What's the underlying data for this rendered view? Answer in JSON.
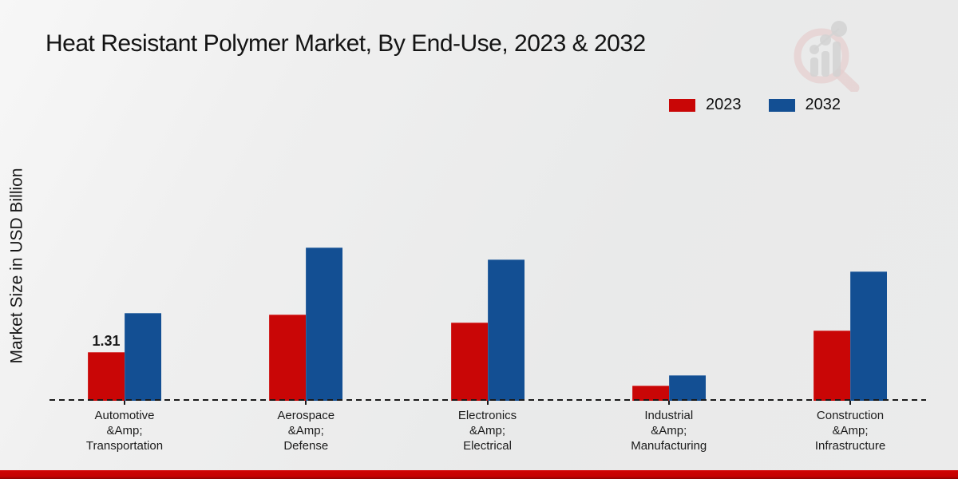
{
  "page": {
    "bottom_accent_color": "#c40202",
    "background_color": "#ebebeb"
  },
  "icons": {
    "watermark": "market-research-future-logo (magnifier with bar chart)"
  },
  "chart_data": {
    "type": "bar",
    "title": "Heat Resistant Polymer Market, By End-Use, 2023 & 2032",
    "ylabel": "Market Size in USD Billion",
    "xlabel": "",
    "categories": [
      "Automotive\n&Amp;\nTransportation",
      "Aerospace\n&Amp;\nDefense",
      "Electronics\n&Amp;\nElectrical",
      "Industrial\n&Amp;\nManufacturing",
      "Construction\n&Amp;\nInfrastructure"
    ],
    "series": [
      {
        "name": "2023",
        "color": "#c90606",
        "values": [
          1.31,
          2.32,
          2.1,
          0.41,
          1.89
        ]
      },
      {
        "name": "2032",
        "color": "#134f93",
        "values": [
          2.36,
          4.12,
          3.8,
          0.69,
          3.48
        ]
      }
    ],
    "bar_labels": [
      [
        "1.31",
        null,
        null,
        null,
        null
      ],
      [
        null,
        null,
        null,
        null,
        null
      ]
    ],
    "ylim": [
      0,
      4.5
    ],
    "grid": false,
    "baseline_style": "dashed",
    "legend_position": "top-right"
  }
}
